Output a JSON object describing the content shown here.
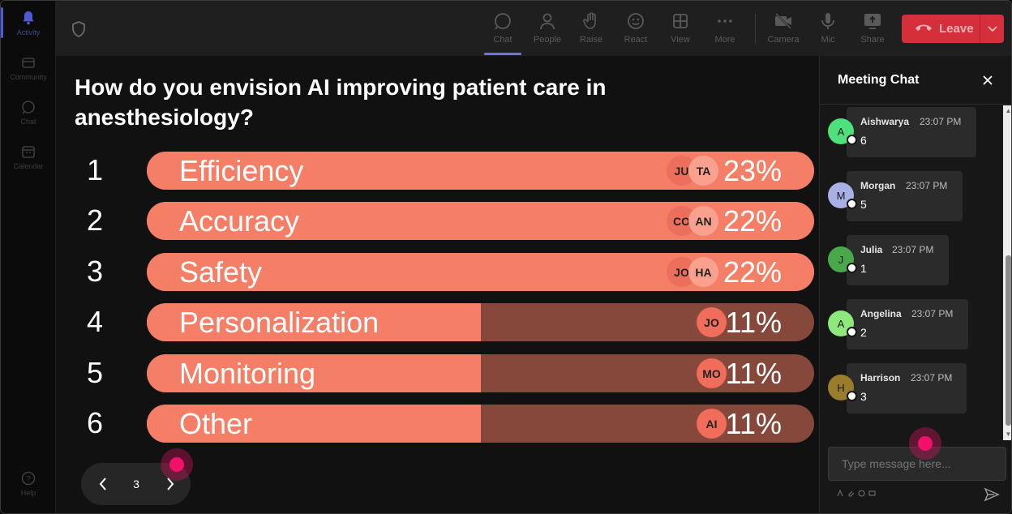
{
  "rail": {
    "items": [
      {
        "label": "Activity",
        "icon": "bell-icon"
      },
      {
        "label": "Community",
        "icon": "community-icon"
      },
      {
        "label": "Chat",
        "icon": "chat-icon"
      },
      {
        "label": "Calendar",
        "icon": "calendar-icon"
      }
    ],
    "help": {
      "label": "Help",
      "icon": "help-icon"
    }
  },
  "topbar": {
    "buttons": [
      {
        "label": "Chat",
        "icon": "chat-icon"
      },
      {
        "label": "People",
        "icon": "people-icon"
      },
      {
        "label": "Raise",
        "icon": "raise-hand-icon"
      },
      {
        "label": "React",
        "icon": "smile-icon"
      },
      {
        "label": "View",
        "icon": "grid-icon"
      },
      {
        "label": "More",
        "icon": "more-icon"
      },
      {
        "label": "Camera",
        "icon": "camera-off-icon"
      },
      {
        "label": "Mic",
        "icon": "mic-icon"
      },
      {
        "label": "Share",
        "icon": "share-icon"
      }
    ],
    "leave_label": "Leave"
  },
  "poll": {
    "question": "How do you envision AI improving patient care in anesthesiology?",
    "options": [
      {
        "num": "1",
        "label": "Efficiency",
        "pct": "23%",
        "share": 1.0,
        "avatars": [
          "JU",
          "TA"
        ]
      },
      {
        "num": "2",
        "label": "Accuracy",
        "pct": "22%",
        "share": 1.0,
        "avatars": [
          "CO",
          "AN"
        ]
      },
      {
        "num": "3",
        "label": "Safety",
        "pct": "22%",
        "share": 1.0,
        "avatars": [
          "JO",
          "HA"
        ]
      },
      {
        "num": "4",
        "label": "Personalization",
        "pct": "11%",
        "share": 0.5,
        "avatars": [
          "JO"
        ]
      },
      {
        "num": "5",
        "label": "Monitoring",
        "pct": "11%",
        "share": 0.5,
        "avatars": [
          "MO"
        ]
      },
      {
        "num": "6",
        "label": "Other",
        "pct": "11%",
        "share": 0.5,
        "avatars": [
          "AI"
        ]
      }
    ],
    "page": "3"
  },
  "chat": {
    "title": "Meeting Chat",
    "messages": [
      {
        "initial": "A",
        "name": "Aishwarya",
        "time": "23:07 PM",
        "text": "6",
        "color": "#4ee07a"
      },
      {
        "initial": "M",
        "name": "Morgan",
        "time": "23:07 PM",
        "text": "5",
        "color": "#a9b0e6"
      },
      {
        "initial": "J",
        "name": "Julia",
        "time": "23:07 PM",
        "text": "1",
        "color": "#49a84a"
      },
      {
        "initial": "A",
        "name": "Angelina",
        "time": "23:07 PM",
        "text": "2",
        "color": "#8ee87c"
      },
      {
        "initial": "H",
        "name": "Harrison",
        "time": "23:07 PM",
        "text": "3",
        "color": "#9a7d2a"
      }
    ],
    "input_placeholder": "Type message here..."
  }
}
